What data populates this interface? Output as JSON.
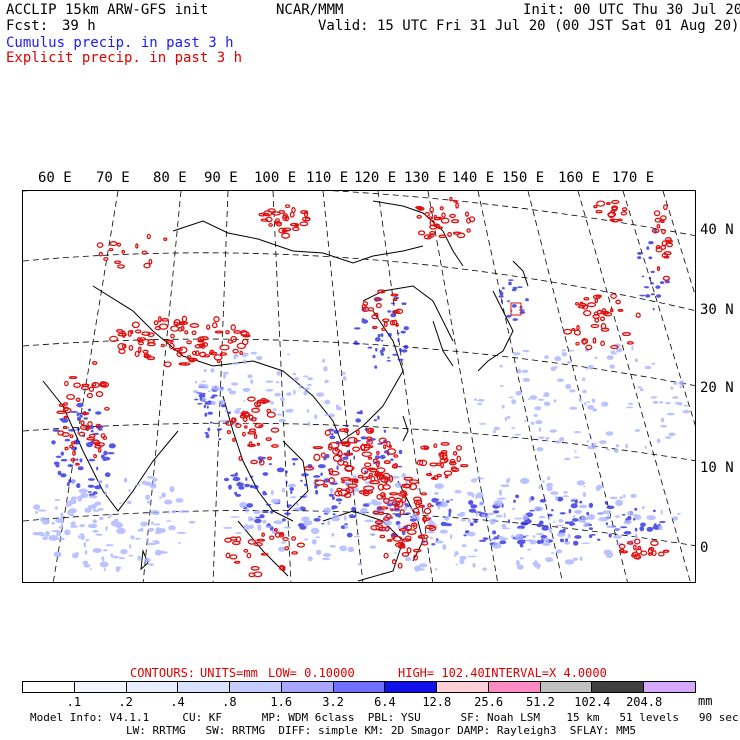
{
  "header": {
    "model": "ACCLIP 15km ARW-GFS init",
    "center": "NCAR/MMM",
    "init": "Init: 00 UTC Thu 30 Jul 20",
    "fcst_label": "Fcst:",
    "fcst_value": "39 h",
    "valid": "Valid: 15 UTC Fri 31 Jul 20 (00 JST Sat 01 Aug 20)",
    "legend_cumulus": "Cumulus precip. in past 3 h",
    "legend_explicit": "Explicit precip. in past 3 h"
  },
  "map": {
    "lon_labels": [
      "60 E",
      "70 E",
      "80 E",
      "90 E",
      "100 E",
      "110 E",
      "120 E",
      "130 E",
      "140 E",
      "150 E",
      "160 E",
      "170 E"
    ],
    "lat_labels": [
      "40 N",
      "30 N",
      "20 N",
      "10 N",
      "0"
    ],
    "colors": {
      "cumulus": "#2020e0",
      "explicit": "#e01010",
      "coast": "#000000",
      "grid": "#000000"
    }
  },
  "contours": {
    "label": "CONTOURS:",
    "units": "UNITS=mm",
    "low": "LOW= 0.10000",
    "high": "HIGH= 102.40",
    "interval": "INTERVAL=X 4.0000"
  },
  "colorbar": {
    "labels": [
      ".1",
      ".2",
      ".4",
      ".8",
      "1.6",
      "3.2",
      "6.4",
      "12.8",
      "25.6",
      "51.2",
      "102.4",
      "204.8"
    ],
    "unit": "mm",
    "colors": [
      "#ffffff",
      "#f4f6ff",
      "#e8eeff",
      "#d8e2ff",
      "#c4ccff",
      "#a6a6ff",
      "#7070ff",
      "#1010e8",
      "#ffd0d8",
      "#ff8ac4",
      "#c0c0c0",
      "#404040",
      "#d8a8ff"
    ]
  },
  "footer": {
    "line1": "Model Info: V4.1.1     CU: KF      MP: WDM 6class  PBL: YSU      SF: Noah LSM    15 km   51 levels   90 sec",
    "line2": "LW: RRTMG   SW: RRTMG  DIFF: simple KM: 2D Smagor DAMP: Rayleigh3  SFLAY: MM5"
  }
}
